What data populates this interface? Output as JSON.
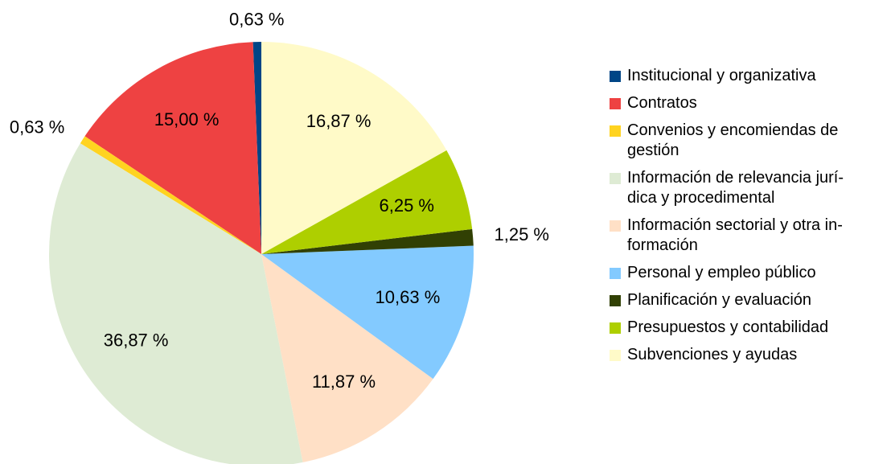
{
  "chart_data": {
    "type": "pie",
    "categories": [
      "Institucional y organizativa",
      "Contratos",
      "Convenios y encomiendas de\ngestión",
      "Información de relevancia jurí-\ndica y procedimental",
      "Información sectorial y otra in-\nformación",
      "Personal y empleo público",
      "Planificación y evaluación",
      "Presupuestos y contabilidad",
      "Subvenciones y ayudas"
    ],
    "values": [
      0.63,
      15.0,
      0.63,
      36.87,
      11.87,
      10.63,
      1.25,
      6.25,
      16.87
    ],
    "value_labels": [
      "0,63 %",
      "15,00 %",
      "0,63 %",
      "36,87 %",
      "11,87 %",
      "10,63 %",
      "1,25 %",
      "6,25 %",
      "16,87 %"
    ],
    "colors": [
      "#004586",
      "#ee4242",
      "#ffd320",
      "#deebd4",
      "#ffe0c6",
      "#83caff",
      "#314004",
      "#aecf00",
      "#fffac8"
    ],
    "legend": "right"
  }
}
